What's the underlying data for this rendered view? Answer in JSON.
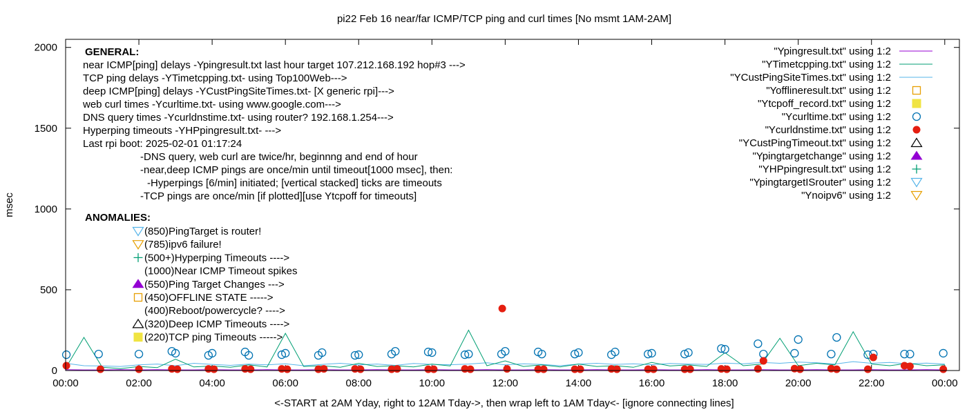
{
  "chart_data": {
    "type": "line",
    "title": "pi22 Feb 16  near/far ICMP/TCP ping and curl times [No msmt 1AM-2AM]",
    "xlabel": "<-START at 2AM Yday, right to 12AM Tday->, then wrap left to 1AM Tday<- [ignore connecting lines]",
    "ylabel": "msec",
    "xlim_hours": [
      0,
      24.4
    ],
    "ylim": [
      0,
      2050
    ],
    "x_ticks": [
      {
        "value": 0,
        "label": "00:00"
      },
      {
        "value": 2,
        "label": "02:00"
      },
      {
        "value": 4,
        "label": "04:00"
      },
      {
        "value": 6,
        "label": "06:00"
      },
      {
        "value": 8,
        "label": "08:00"
      },
      {
        "value": 10,
        "label": "10:00"
      },
      {
        "value": 12,
        "label": "12:00"
      },
      {
        "value": 14,
        "label": "14:00"
      },
      {
        "value": 16,
        "label": "16:00"
      },
      {
        "value": 18,
        "label": "18:00"
      },
      {
        "value": 20,
        "label": "20:00"
      },
      {
        "value": 22,
        "label": "22:00"
      },
      {
        "value": 24,
        "label": "00:00"
      }
    ],
    "y_ticks": [
      {
        "value": 0,
        "label": "0"
      },
      {
        "value": 500,
        "label": "500"
      },
      {
        "value": 1000,
        "label": "1000"
      },
      {
        "value": 1500,
        "label": "1500"
      },
      {
        "value": 2000,
        "label": "2000"
      }
    ],
    "grid": false,
    "legend_placement": "top-right",
    "line_x_hours": [
      0,
      0.5,
      1,
      1.5,
      2,
      2.5,
      3,
      3.5,
      4,
      4.5,
      5,
      5.5,
      6,
      6.5,
      7,
      7.5,
      8,
      8.5,
      9,
      9.5,
      10,
      10.5,
      11,
      11.5,
      12,
      12.5,
      13,
      13.5,
      14,
      14.5,
      15,
      15.5,
      16,
      16.5,
      17,
      17.5,
      18,
      18.5,
      19,
      19.5,
      20,
      20.5,
      21,
      21.5,
      22,
      22.5,
      23,
      23.5,
      24
    ],
    "series": [
      {
        "name": "\"Ypingresult.txt\" using 1:2",
        "style": "line",
        "color": "#9400d3",
        "values": [
          5,
          4,
          4,
          5,
          4,
          5,
          4,
          4,
          5,
          4,
          4,
          5,
          4,
          4,
          5,
          4,
          4,
          5,
          4,
          4,
          5,
          4,
          4,
          5,
          4,
          4,
          5,
          4,
          4,
          5,
          4,
          4,
          5,
          4,
          4,
          5,
          4,
          4,
          5,
          4,
          4,
          5,
          4,
          4,
          5,
          4,
          4,
          5,
          4
        ]
      },
      {
        "name": "\"YTimetcpping.txt\" using 1:2",
        "style": "line",
        "color": "#009e73",
        "values": [
          15,
          205,
          20,
          12,
          25,
          18,
          70,
          22,
          28,
          20,
          35,
          22,
          230,
          25,
          30,
          20,
          45,
          25,
          30,
          22,
          40,
          28,
          250,
          30,
          60,
          25,
          35,
          22,
          40,
          25,
          30,
          20,
          50,
          28,
          35,
          25,
          110,
          30,
          40,
          200,
          30,
          45,
          35,
          240,
          40,
          30,
          45,
          30,
          35
        ]
      },
      {
        "name": "\"YCustPingSiteTimes.txt\" using 1:2",
        "style": "line",
        "color": "#56b4e9",
        "values": [
          45,
          30,
          28,
          25,
          35,
          40,
          30,
          45,
          38,
          32,
          40,
          35,
          42,
          30,
          38,
          45,
          35,
          40,
          32,
          44,
          38,
          36,
          40,
          48,
          35,
          42,
          38,
          30,
          40,
          45,
          38,
          42,
          36,
          44,
          40,
          38,
          46,
          42,
          50,
          45,
          52,
          48,
          40,
          55,
          45,
          50,
          42,
          46,
          40
        ]
      },
      {
        "name": "\"Yofflineresult.txt\" using 1:2",
        "style": "open-square",
        "color": "#e69f00",
        "points": []
      },
      {
        "name": "\"Ytcpoff_record.txt\" using 1:2",
        "style": "filled-square",
        "color": "#f0e442",
        "points": []
      },
      {
        "name": "\"Ycurltime.txt\" using 1:2",
        "style": "open-circle",
        "color": "#0072b2",
        "points": [
          [
            0.02,
            98
          ],
          [
            0.9,
            102
          ],
          [
            2.0,
            102
          ],
          [
            2.9,
            119
          ],
          [
            3.0,
            107
          ],
          [
            3.9,
            94
          ],
          [
            4.0,
            107
          ],
          [
            4.9,
            115
          ],
          [
            5.0,
            94
          ],
          [
            5.9,
            98
          ],
          [
            6.0,
            107
          ],
          [
            6.9,
            94
          ],
          [
            7.0,
            111
          ],
          [
            7.9,
            94
          ],
          [
            8.0,
            98
          ],
          [
            8.9,
            102
          ],
          [
            9.0,
            119
          ],
          [
            9.9,
            115
          ],
          [
            10.0,
            111
          ],
          [
            10.9,
            98
          ],
          [
            11.0,
            102
          ],
          [
            11.9,
            102
          ],
          [
            12.0,
            119
          ],
          [
            12.9,
            115
          ],
          [
            13.0,
            102
          ],
          [
            13.9,
            102
          ],
          [
            14.0,
            111
          ],
          [
            14.9,
            98
          ],
          [
            15.0,
            115
          ],
          [
            15.9,
            102
          ],
          [
            16.0,
            107
          ],
          [
            16.9,
            102
          ],
          [
            17.0,
            111
          ],
          [
            17.9,
            136
          ],
          [
            18.0,
            132
          ],
          [
            18.9,
            166
          ],
          [
            19.05,
            102
          ],
          [
            19.9,
            107
          ],
          [
            20.0,
            192
          ],
          [
            20.9,
            102
          ],
          [
            21.05,
            205
          ],
          [
            21.9,
            98
          ],
          [
            22.05,
            102
          ],
          [
            22.9,
            102
          ],
          [
            23.05,
            102
          ],
          [
            23.96,
            107
          ]
        ]
      },
      {
        "name": "\"Ycurldnstime.txt\" using 1:2",
        "style": "filled-circle",
        "color": "#e51e10",
        "points": [
          [
            0.02,
            30
          ],
          [
            0.95,
            8
          ],
          [
            2.0,
            8
          ],
          [
            2.9,
            10
          ],
          [
            3.05,
            8
          ],
          [
            3.9,
            10
          ],
          [
            4.05,
            8
          ],
          [
            4.9,
            10
          ],
          [
            5.05,
            8
          ],
          [
            5.9,
            10
          ],
          [
            6.05,
            8
          ],
          [
            6.9,
            8
          ],
          [
            7.05,
            10
          ],
          [
            7.9,
            10
          ],
          [
            8.05,
            8
          ],
          [
            8.9,
            8
          ],
          [
            9.05,
            10
          ],
          [
            9.9,
            8
          ],
          [
            10.05,
            8
          ],
          [
            10.9,
            10
          ],
          [
            11.05,
            8
          ],
          [
            11.92,
            384
          ],
          [
            12.05,
            10
          ],
          [
            12.9,
            8
          ],
          [
            13.05,
            8
          ],
          [
            13.9,
            8
          ],
          [
            14.05,
            8
          ],
          [
            14.9,
            10
          ],
          [
            15.05,
            8
          ],
          [
            15.9,
            8
          ],
          [
            16.05,
            8
          ],
          [
            16.9,
            8
          ],
          [
            17.05,
            8
          ],
          [
            17.9,
            10
          ],
          [
            18.05,
            8
          ],
          [
            18.9,
            10
          ],
          [
            19.05,
            60
          ],
          [
            19.9,
            12
          ],
          [
            20.05,
            8
          ],
          [
            20.9,
            12
          ],
          [
            21.05,
            8
          ],
          [
            21.9,
            8
          ],
          [
            22.05,
            81
          ],
          [
            22.9,
            30
          ],
          [
            23.05,
            26
          ],
          [
            23.96,
            8
          ]
        ]
      },
      {
        "name": "\"YCustPingTimeout.txt\" using 1:2",
        "style": "open-triangle",
        "color": "#000000",
        "points": []
      },
      {
        "name": "\"Ypingtargetchange\" using 1:2",
        "style": "filled-triangle",
        "color": "#9400d3",
        "points": []
      },
      {
        "name": "\"YHPpingresult.txt\" using 1:2",
        "style": "plus",
        "color": "#009e73",
        "points": []
      },
      {
        "name": "\"YpingtargetISrouter\" using 1:2",
        "style": "open-down-triangle",
        "color": "#56b4e9",
        "points": []
      },
      {
        "name": "\"Ynoipv6\" using 1:2",
        "style": "open-down-triangle",
        "color": "#e69f00",
        "points": []
      }
    ],
    "annotations": {
      "general_heading": "GENERAL:",
      "general_lines": [
        "near ICMP[ping] delays -Ypingresult.txt last hour target 107.212.168.192 hop#3 --->",
        "TCP ping delays -YTimetcpping.txt- using Top100Web--->",
        "deep ICMP[ping] delays -YCustPingSiteTimes.txt- [X generic rpi]--->",
        "web curl times -Ycurltime.txt- using www.google.com--->",
        "DNS query times -Ycurldnstime.txt- using router? 192.168.1.254--->",
        "Hyperping timeouts -YHPpingresult.txt- --->",
        "Last rpi boot: 2025-02-01 01:17:24"
      ],
      "notes": [
        "-DNS query, web curl are twice/hr, beginnng and end of hour",
        "-near,deep ICMP pings are once/min until timeout[1000 msec], then:",
        "-Hyperpings [6/min] initiated; [vertical stacked] ticks are timeouts",
        "-TCP pings are once/min [if plotted][use Ytcpoff for timeouts]"
      ],
      "anomalies_heading": "ANOMALIES:",
      "anomalies": [
        {
          "text": "(850)PingTarget is router!",
          "marker": "open-down-triangle",
          "color": "#56b4e9"
        },
        {
          "text": "(785)ipv6 failure!",
          "marker": "open-down-triangle",
          "color": "#e69f00"
        },
        {
          "text": "(500+)Hyperping Timeouts ---->",
          "marker": "plus",
          "color": "#009e73"
        },
        {
          "text": "(1000)Near ICMP Timeout spikes",
          "marker": "none",
          "color": ""
        },
        {
          "text": "(550)Ping Target Changes --->",
          "marker": "filled-triangle",
          "color": "#9400d3"
        },
        {
          "text": "(450)OFFLINE STATE ----->",
          "marker": "open-square",
          "color": "#e69f00"
        },
        {
          "text": "(400)Reboot/powercycle? ---->",
          "marker": "none",
          "color": ""
        },
        {
          "text": "(320)Deep ICMP Timeouts ---->",
          "marker": "open-triangle",
          "color": "#000000"
        },
        {
          "text": "(220)TCP ping Timeouts ----->",
          "marker": "filled-square",
          "color": "#f0e442"
        }
      ]
    }
  }
}
